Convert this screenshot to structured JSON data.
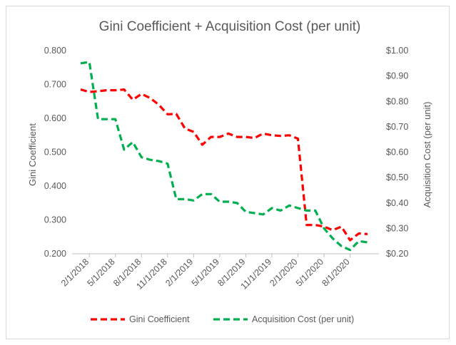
{
  "chart_data": {
    "type": "line",
    "title": "Gini Coefficient + Acquisition Cost (per unit)",
    "ylabel_left": "Gini Coefficient",
    "ylabel_right": "Acquisition Cost (per unit)",
    "ylim_left": [
      0.2,
      0.8
    ],
    "ylim_right": [
      0.2,
      1.0
    ],
    "yticks_left": [
      "0.200",
      "0.300",
      "0.400",
      "0.500",
      "0.600",
      "0.700",
      "0.800"
    ],
    "yticks_right": [
      "$0.20",
      "$0.30",
      "$0.40",
      "$0.50",
      "$0.60",
      "$0.70",
      "$0.80",
      "$0.90",
      "$1.00"
    ],
    "x_tick_labels": [
      "2/1/2018",
      "5/1/2018",
      "8/1/2018",
      "11/1/2018",
      "2/1/2019",
      "5/1/2019",
      "8/1/2019",
      "11/1/2019",
      "2/1/2020",
      "5/1/2020",
      "8/1/2020"
    ],
    "x": [
      "1/1/2018",
      "2/1/2018",
      "3/1/2018",
      "4/1/2018",
      "5/1/2018",
      "6/1/2018",
      "7/1/2018",
      "8/1/2018",
      "9/1/2018",
      "10/1/2018",
      "11/1/2018",
      "12/1/2018",
      "1/1/2019",
      "2/1/2019",
      "3/1/2019",
      "4/1/2019",
      "5/1/2019",
      "6/1/2019",
      "7/1/2019",
      "8/1/2019",
      "9/1/2019",
      "10/1/2019",
      "11/1/2019",
      "12/1/2019",
      "1/1/2020",
      "2/1/2020",
      "3/1/2020",
      "4/1/2020",
      "5/1/2020",
      "6/1/2020",
      "7/1/2020",
      "8/1/2020",
      "9/1/2020",
      "10/1/2020"
    ],
    "grid": false,
    "legend_position": "bottom",
    "series": [
      {
        "name": "Gini Coefficient",
        "axis": "left",
        "color": "#ff0000",
        "values": [
          0.685,
          0.678,
          0.68,
          0.683,
          0.683,
          0.685,
          0.655,
          0.672,
          0.66,
          0.64,
          0.612,
          0.613,
          0.57,
          0.56,
          0.522,
          0.545,
          0.545,
          0.555,
          0.545,
          0.545,
          0.542,
          0.555,
          0.55,
          0.548,
          0.55,
          0.54,
          0.285,
          0.285,
          0.28,
          0.27,
          0.28,
          0.24,
          0.26,
          0.258
        ]
      },
      {
        "name": "Acquisition Cost (per unit)",
        "axis": "right",
        "color": "#00b050",
        "values": [
          0.95,
          0.955,
          0.73,
          0.73,
          0.73,
          0.61,
          0.64,
          0.58,
          0.57,
          0.565,
          0.555,
          0.415,
          0.415,
          0.41,
          0.435,
          0.435,
          0.405,
          0.405,
          0.4,
          0.365,
          0.36,
          0.355,
          0.38,
          0.37,
          0.39,
          0.38,
          0.37,
          0.37,
          0.3,
          0.26,
          0.23,
          0.215,
          0.25,
          0.245
        ]
      }
    ]
  }
}
